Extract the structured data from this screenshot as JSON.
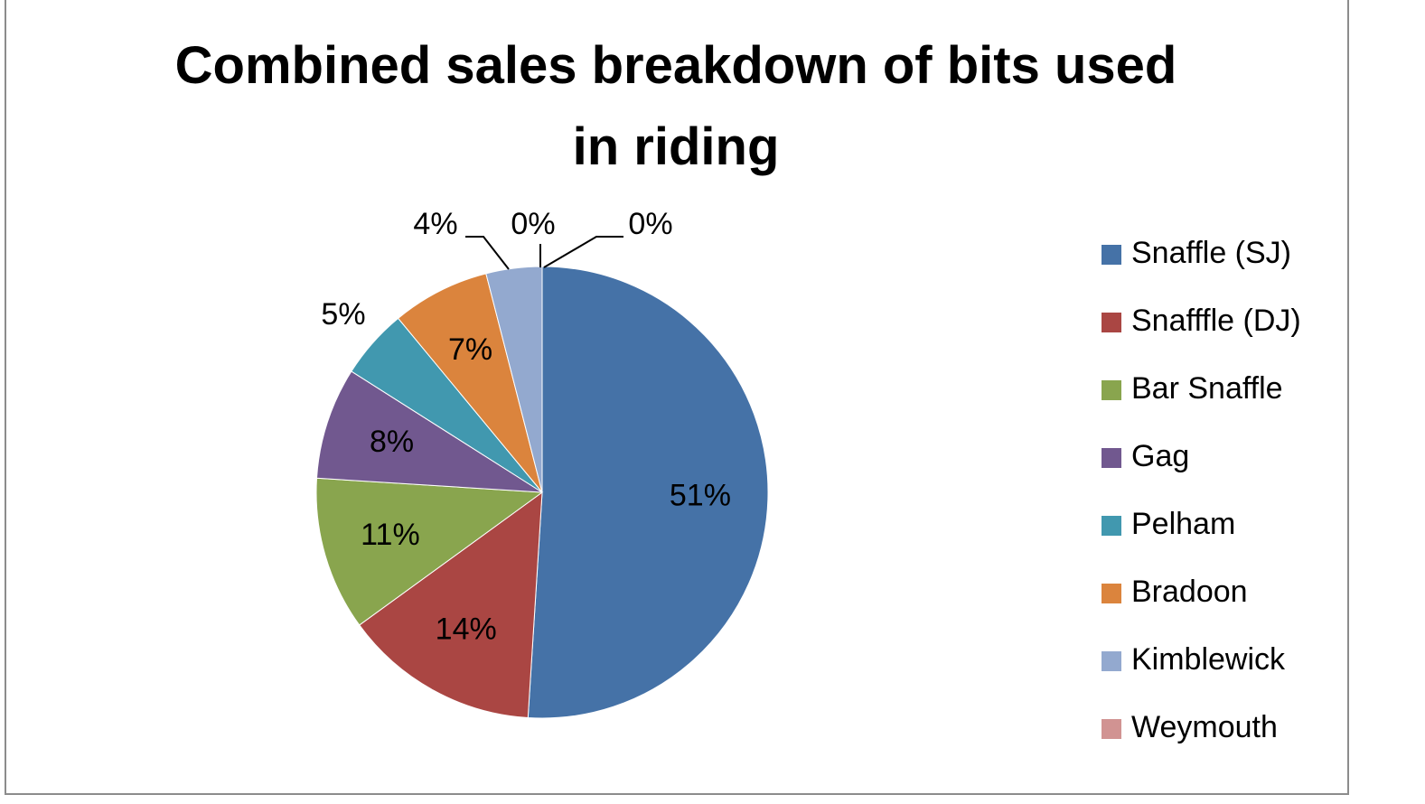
{
  "chart_data": {
    "type": "pie",
    "title": "Combined sales breakdown of bits used in riding",
    "categories": [
      "Snaffle (SJ)",
      "Snafffle (DJ)",
      "Bar Snaffle",
      "Gag",
      "Pelham",
      "Bradoon",
      "Kimblewick",
      "Weymouth",
      null
    ],
    "values": [
      51,
      14,
      11,
      8,
      5,
      7,
      4,
      0,
      0
    ],
    "value_labels": [
      "51%",
      "14%",
      "11%",
      "8%",
      "5%",
      "7%",
      "4%",
      "0%",
      "0%"
    ],
    "colors": [
      "#4572a7",
      "#aa4643",
      "#89a54e",
      "#71588f",
      "#4198af",
      "#db843d",
      "#93a9cf",
      "#d19392",
      "#b9cd96"
    ],
    "legend": "right"
  }
}
